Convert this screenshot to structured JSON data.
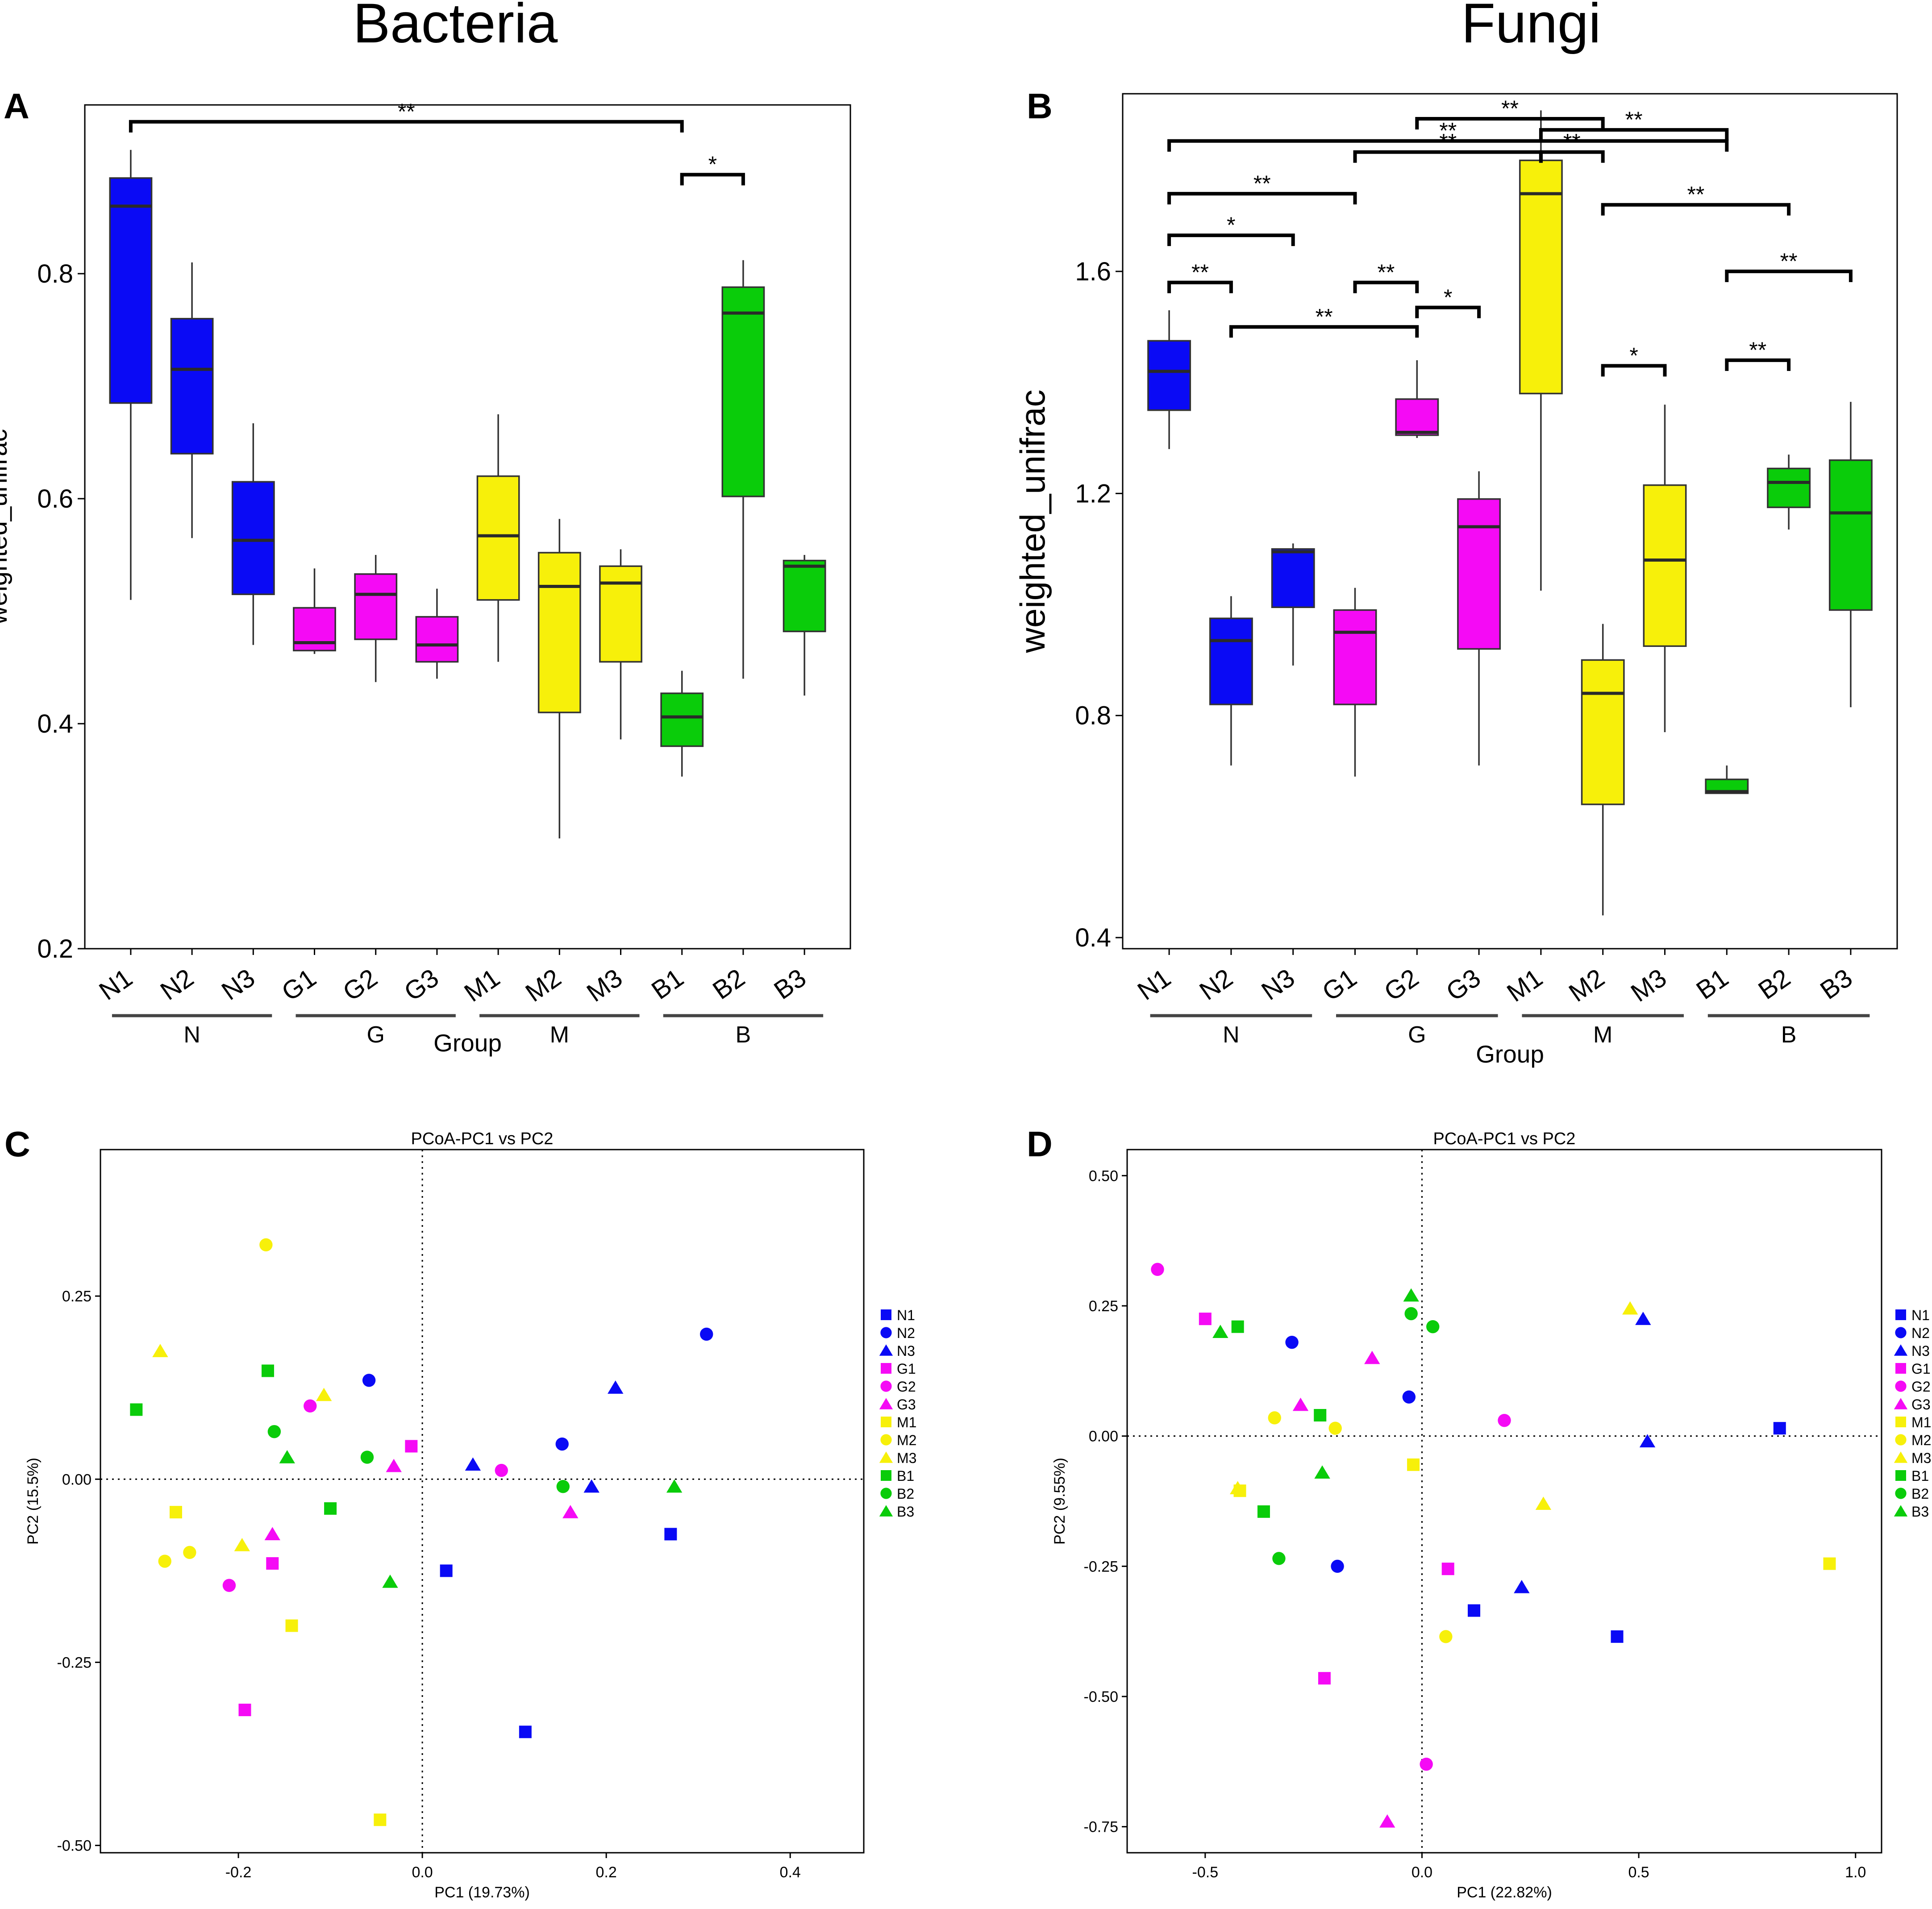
{
  "figure": {
    "title_bacteria": "Bacteria",
    "title_fungi": "Fungi"
  },
  "colors": {
    "N": "#0a0af5",
    "G": "#f50af5",
    "M": "#f7f00a",
    "B": "#0acc0a",
    "axis": "#000000",
    "median": "#2a2a2a"
  },
  "chart_data": [
    {
      "panel": "A",
      "type": "box",
      "xlabel": "Group",
      "ylabel": "weighted_unifrac",
      "ylim": [
        0.2,
        0.95
      ],
      "yticks": [
        "0.2",
        "0.4",
        "0.6",
        "0.8"
      ],
      "categories": [
        "N1",
        "N2",
        "N3",
        "G1",
        "G2",
        "G3",
        "M1",
        "M2",
        "M3",
        "B1",
        "B2",
        "B3"
      ],
      "groups": [
        {
          "label": "N",
          "members": [
            "N1",
            "N2",
            "N3"
          ]
        },
        {
          "label": "G",
          "members": [
            "G1",
            "G2",
            "G3"
          ]
        },
        {
          "label": "M",
          "members": [
            "M1",
            "M2",
            "M3"
          ]
        },
        {
          "label": "B",
          "members": [
            "B1",
            "B2",
            "B3"
          ]
        }
      ],
      "boxes": [
        {
          "name": "N1",
          "group": "N",
          "min": 0.51,
          "q1": 0.685,
          "median": 0.86,
          "q3": 0.885,
          "max": 0.91
        },
        {
          "name": "N2",
          "group": "N",
          "min": 0.565,
          "q1": 0.64,
          "median": 0.715,
          "q3": 0.76,
          "max": 0.81
        },
        {
          "name": "N3",
          "group": "N",
          "min": 0.47,
          "q1": 0.515,
          "median": 0.563,
          "q3": 0.615,
          "max": 0.667
        },
        {
          "name": "G1",
          "group": "G",
          "min": 0.462,
          "q1": 0.465,
          "median": 0.472,
          "q3": 0.503,
          "max": 0.538
        },
        {
          "name": "G2",
          "group": "G",
          "min": 0.437,
          "q1": 0.475,
          "median": 0.515,
          "q3": 0.533,
          "max": 0.55
        },
        {
          "name": "G3",
          "group": "G",
          "min": 0.44,
          "q1": 0.455,
          "median": 0.47,
          "q3": 0.495,
          "max": 0.52
        },
        {
          "name": "M1",
          "group": "M",
          "min": 0.455,
          "q1": 0.51,
          "median": 0.567,
          "q3": 0.62,
          "max": 0.675
        },
        {
          "name": "M2",
          "group": "M",
          "min": 0.298,
          "q1": 0.41,
          "median": 0.522,
          "q3": 0.552,
          "max": 0.582
        },
        {
          "name": "M3",
          "group": "M",
          "min": 0.386,
          "q1": 0.455,
          "median": 0.525,
          "q3": 0.54,
          "max": 0.555
        },
        {
          "name": "B1",
          "group": "B",
          "min": 0.353,
          "q1": 0.38,
          "median": 0.406,
          "q3": 0.427,
          "max": 0.447
        },
        {
          "name": "B2",
          "group": "B",
          "min": 0.44,
          "q1": 0.602,
          "median": 0.765,
          "q3": 0.788,
          "max": 0.812
        },
        {
          "name": "B3",
          "group": "B",
          "min": 0.425,
          "q1": 0.482,
          "median": 0.54,
          "q3": 0.545,
          "max": 0.55
        }
      ],
      "significance": [
        {
          "from": "N1",
          "to": "B1",
          "y": 0.935,
          "label": "**"
        },
        {
          "from": "B1",
          "to": "B2",
          "y": 0.888,
          "label": "*"
        }
      ]
    },
    {
      "panel": "B",
      "type": "box",
      "xlabel": "Group",
      "ylabel": "weighted_unifrac",
      "ylim": [
        0.38,
        1.92
      ],
      "yticks": [
        "0.4",
        "0.8",
        "1.2",
        "1.6"
      ],
      "categories": [
        "N1",
        "N2",
        "N3",
        "G1",
        "G2",
        "G3",
        "M1",
        "M2",
        "M3",
        "B1",
        "B2",
        "B3"
      ],
      "groups": [
        {
          "label": "N",
          "members": [
            "N1",
            "N2",
            "N3"
          ]
        },
        {
          "label": "G",
          "members": [
            "G1",
            "G2",
            "G3"
          ]
        },
        {
          "label": "M",
          "members": [
            "M1",
            "M2",
            "M3"
          ]
        },
        {
          "label": "B",
          "members": [
            "B1",
            "B2",
            "B3"
          ]
        }
      ],
      "boxes": [
        {
          "name": "N1",
          "group": "N",
          "min": 1.28,
          "q1": 1.35,
          "median": 1.42,
          "q3": 1.475,
          "max": 1.53
        },
        {
          "name": "N2",
          "group": "N",
          "min": 0.71,
          "q1": 0.82,
          "median": 0.935,
          "q3": 0.975,
          "max": 1.015
        },
        {
          "name": "N3",
          "group": "N",
          "min": 0.89,
          "q1": 0.995,
          "median": 1.095,
          "q3": 1.1,
          "max": 1.11
        },
        {
          "name": "G1",
          "group": "G",
          "min": 0.69,
          "q1": 0.82,
          "median": 0.95,
          "q3": 0.99,
          "max": 1.03
        },
        {
          "name": "G2",
          "group": "G",
          "min": 1.3,
          "q1": 1.305,
          "median": 1.31,
          "q3": 1.37,
          "max": 1.44
        },
        {
          "name": "G3",
          "group": "G",
          "min": 0.71,
          "q1": 0.92,
          "median": 1.14,
          "q3": 1.19,
          "max": 1.24
        },
        {
          "name": "M1",
          "group": "M",
          "min": 1.025,
          "q1": 1.38,
          "median": 1.74,
          "q3": 1.8,
          "max": 1.89
        },
        {
          "name": "M2",
          "group": "M",
          "min": 0.44,
          "q1": 0.64,
          "median": 0.84,
          "q3": 0.9,
          "max": 0.965
        },
        {
          "name": "M3",
          "group": "M",
          "min": 0.77,
          "q1": 0.925,
          "median": 1.08,
          "q3": 1.215,
          "max": 1.36
        },
        {
          "name": "B1",
          "group": "B",
          "min": 0.66,
          "q1": 0.66,
          "median": 0.663,
          "q3": 0.685,
          "max": 0.71
        },
        {
          "name": "B2",
          "group": "B",
          "min": 1.135,
          "q1": 1.175,
          "median": 1.22,
          "q3": 1.245,
          "max": 1.27
        },
        {
          "name": "B3",
          "group": "B",
          "min": 0.815,
          "q1": 0.99,
          "median": 1.165,
          "q3": 1.26,
          "max": 1.365
        }
      ],
      "significance": [
        {
          "from": "G2",
          "to": "M2",
          "y": 1.875,
          "label": "**"
        },
        {
          "from": "M1",
          "to": "B1",
          "y": 1.855,
          "label": "**"
        },
        {
          "from": "N1",
          "to": "B1",
          "y": 1.835,
          "label": "**"
        },
        {
          "from": "G1",
          "to": "M1",
          "y": 1.815,
          "label": "**"
        },
        {
          "from": "M1",
          "to": "M2",
          "y": 1.815,
          "label": "**"
        },
        {
          "from": "N1",
          "to": "G1",
          "y": 1.74,
          "label": "**"
        },
        {
          "from": "M2",
          "to": "B2",
          "y": 1.72,
          "label": "**"
        },
        {
          "from": "N1",
          "to": "N3",
          "y": 1.665,
          "label": "*"
        },
        {
          "from": "N1",
          "to": "N2",
          "y": 1.58,
          "label": "**"
        },
        {
          "from": "G1",
          "to": "G2",
          "y": 1.58,
          "label": "**"
        },
        {
          "from": "B1",
          "to": "B3",
          "y": 1.6,
          "label": "**"
        },
        {
          "from": "G2",
          "to": "G3",
          "y": 1.535,
          "label": "*"
        },
        {
          "from": "N2",
          "to": "G2",
          "y": 1.5,
          "label": "**"
        },
        {
          "from": "M2",
          "to": "M3",
          "y": 1.43,
          "label": "*"
        },
        {
          "from": "B1",
          "to": "B2",
          "y": 1.44,
          "label": "**"
        }
      ]
    },
    {
      "panel": "C",
      "type": "scatter",
      "title": "PCoA-PC1 vs PC2",
      "xlabel": "PC1 (19.73%)",
      "ylabel": "PC2 (15.5%)",
      "xlim": [
        -0.35,
        0.48
      ],
      "ylim": [
        -0.51,
        0.45
      ],
      "xticks": [
        -0.2,
        0.0,
        0.2,
        0.4
      ],
      "xtick_labels": [
        "-0.2",
        "0.0",
        "0.2",
        "0.4"
      ],
      "yticks": [
        -0.5,
        -0.25,
        0.0,
        0.25
      ],
      "ytick_labels": [
        "-0.50",
        "-0.25",
        "0.00",
        "0.25"
      ],
      "legend": [
        "N1",
        "N2",
        "N3",
        "G1",
        "G2",
        "G3",
        "M1",
        "M2",
        "M3",
        "B1",
        "B2",
        "B3"
      ],
      "series": [
        {
          "name": "N1",
          "shape": "square",
          "group": "N",
          "points": [
            [
              0.112,
              -0.345
            ],
            [
              0.27,
              -0.075
            ],
            [
              0.026,
              -0.125
            ]
          ]
        },
        {
          "name": "N2",
          "shape": "circle",
          "group": "N",
          "points": [
            [
              -0.058,
              0.135
            ],
            [
              0.152,
              0.048
            ],
            [
              0.309,
              0.198
            ]
          ]
        },
        {
          "name": "N3",
          "shape": "triangle",
          "group": "N",
          "points": [
            [
              0.21,
              0.125
            ],
            [
              0.184,
              -0.01
            ],
            [
              0.055,
              0.02
            ]
          ]
        },
        {
          "name": "G1",
          "shape": "square",
          "group": "G",
          "points": [
            [
              -0.193,
              -0.315
            ],
            [
              -0.163,
              -0.115
            ],
            [
              -0.012,
              0.045
            ]
          ]
        },
        {
          "name": "G2",
          "shape": "circle",
          "group": "G",
          "points": [
            [
              -0.21,
              -0.145
            ],
            [
              -0.122,
              0.1
            ],
            [
              0.086,
              0.012
            ]
          ]
        },
        {
          "name": "G3",
          "shape": "triangle",
          "group": "G",
          "points": [
            [
              -0.163,
              -0.075
            ],
            [
              -0.031,
              0.018
            ],
            [
              0.161,
              -0.045
            ]
          ]
        },
        {
          "name": "M1",
          "shape": "square",
          "group": "M",
          "points": [
            [
              -0.268,
              -0.045
            ],
            [
              -0.142,
              -0.2
            ],
            [
              -0.046,
              -0.465
            ]
          ]
        },
        {
          "name": "M2",
          "shape": "circle",
          "group": "M",
          "points": [
            [
              -0.28,
              -0.112
            ],
            [
              -0.253,
              -0.1
            ],
            [
              -0.17,
              0.32
            ]
          ]
        },
        {
          "name": "M3",
          "shape": "triangle",
          "group": "M",
          "points": [
            [
              -0.285,
              0.175
            ],
            [
              -0.196,
              -0.09
            ],
            [
              -0.107,
              0.115
            ]
          ]
        },
        {
          "name": "B1",
          "shape": "square",
          "group": "B",
          "points": [
            [
              -0.311,
              0.095
            ],
            [
              -0.168,
              0.148
            ],
            [
              -0.1,
              -0.04
            ]
          ]
        },
        {
          "name": "B2",
          "shape": "circle",
          "group": "B",
          "points": [
            [
              -0.161,
              0.065
            ],
            [
              -0.06,
              0.03
            ],
            [
              0.153,
              -0.01
            ]
          ]
        },
        {
          "name": "B3",
          "shape": "triangle",
          "group": "B",
          "points": [
            [
              -0.147,
              0.03
            ],
            [
              -0.035,
              -0.14
            ],
            [
              0.274,
              -0.01
            ]
          ]
        }
      ]
    },
    {
      "panel": "D",
      "type": "scatter",
      "title": "PCoA-PC1 vs PC2",
      "xlabel": "PC1 (22.82%)",
      "ylabel": "PC2 (9.55%)",
      "xlim": [
        -0.68,
        1.06
      ],
      "ylim": [
        -0.8,
        0.55
      ],
      "xticks": [
        -0.5,
        0.0,
        0.5,
        1.0
      ],
      "xtick_labels": [
        "-0.5",
        "0.0",
        "0.5",
        "1.0"
      ],
      "yticks": [
        -0.75,
        -0.5,
        -0.25,
        0.0,
        0.25,
        0.5
      ],
      "ytick_labels": [
        "-0.75",
        "-0.50",
        "-0.25",
        "0.00",
        "0.25",
        "0.50"
      ],
      "legend": [
        "N1",
        "N2",
        "N3",
        "G1",
        "G2",
        "G3",
        "M1",
        "M2",
        "M3",
        "B1",
        "B2",
        "B3"
      ],
      "series": [
        {
          "name": "N1",
          "shape": "square",
          "group": "N",
          "points": [
            [
              0.12,
              -0.335
            ],
            [
              0.45,
              -0.385
            ],
            [
              0.825,
              0.015
            ]
          ]
        },
        {
          "name": "N2",
          "shape": "circle",
          "group": "N",
          "points": [
            [
              -0.3,
              0.18
            ],
            [
              -0.03,
              0.075
            ],
            [
              -0.195,
              -0.25
            ]
          ]
        },
        {
          "name": "N3",
          "shape": "triangle",
          "group": "N",
          "points": [
            [
              0.23,
              -0.29
            ],
            [
              0.51,
              0.225
            ],
            [
              0.52,
              -0.01
            ]
          ]
        },
        {
          "name": "G1",
          "shape": "square",
          "group": "G",
          "points": [
            [
              -0.5,
              0.225
            ],
            [
              0.06,
              -0.255
            ],
            [
              -0.225,
              -0.465
            ]
          ]
        },
        {
          "name": "G2",
          "shape": "circle",
          "group": "G",
          "points": [
            [
              -0.61,
              0.32
            ],
            [
              0.19,
              0.03
            ],
            [
              0.01,
              -0.63
            ]
          ]
        },
        {
          "name": "G3",
          "shape": "triangle",
          "group": "G",
          "points": [
            [
              -0.115,
              0.15
            ],
            [
              -0.28,
              0.06
            ],
            [
              -0.08,
              -0.74
            ]
          ]
        },
        {
          "name": "M1",
          "shape": "square",
          "group": "M",
          "points": [
            [
              -0.02,
              -0.055
            ],
            [
              -0.42,
              -0.105
            ],
            [
              0.94,
              -0.245
            ]
          ]
        },
        {
          "name": "M2",
          "shape": "circle",
          "group": "M",
          "points": [
            [
              -0.34,
              0.035
            ],
            [
              -0.2,
              0.015
            ],
            [
              0.055,
              -0.385
            ]
          ]
        },
        {
          "name": "M3",
          "shape": "triangle",
          "group": "M",
          "points": [
            [
              0.48,
              0.245
            ],
            [
              0.28,
              -0.13
            ],
            [
              -0.425,
              -0.1
            ]
          ]
        },
        {
          "name": "B1",
          "shape": "square",
          "group": "B",
          "points": [
            [
              -0.425,
              0.21
            ],
            [
              -0.235,
              0.04
            ],
            [
              -0.365,
              -0.145
            ]
          ]
        },
        {
          "name": "B2",
          "shape": "circle",
          "group": "B",
          "points": [
            [
              -0.025,
              0.235
            ],
            [
              0.025,
              0.21
            ],
            [
              -0.33,
              -0.235
            ]
          ]
        },
        {
          "name": "B3",
          "shape": "triangle",
          "group": "B",
          "points": [
            [
              -0.465,
              0.2
            ],
            [
              -0.025,
              0.27
            ],
            [
              -0.23,
              -0.07
            ]
          ]
        }
      ]
    }
  ],
  "panel_letters": [
    "A",
    "B",
    "C",
    "D"
  ]
}
